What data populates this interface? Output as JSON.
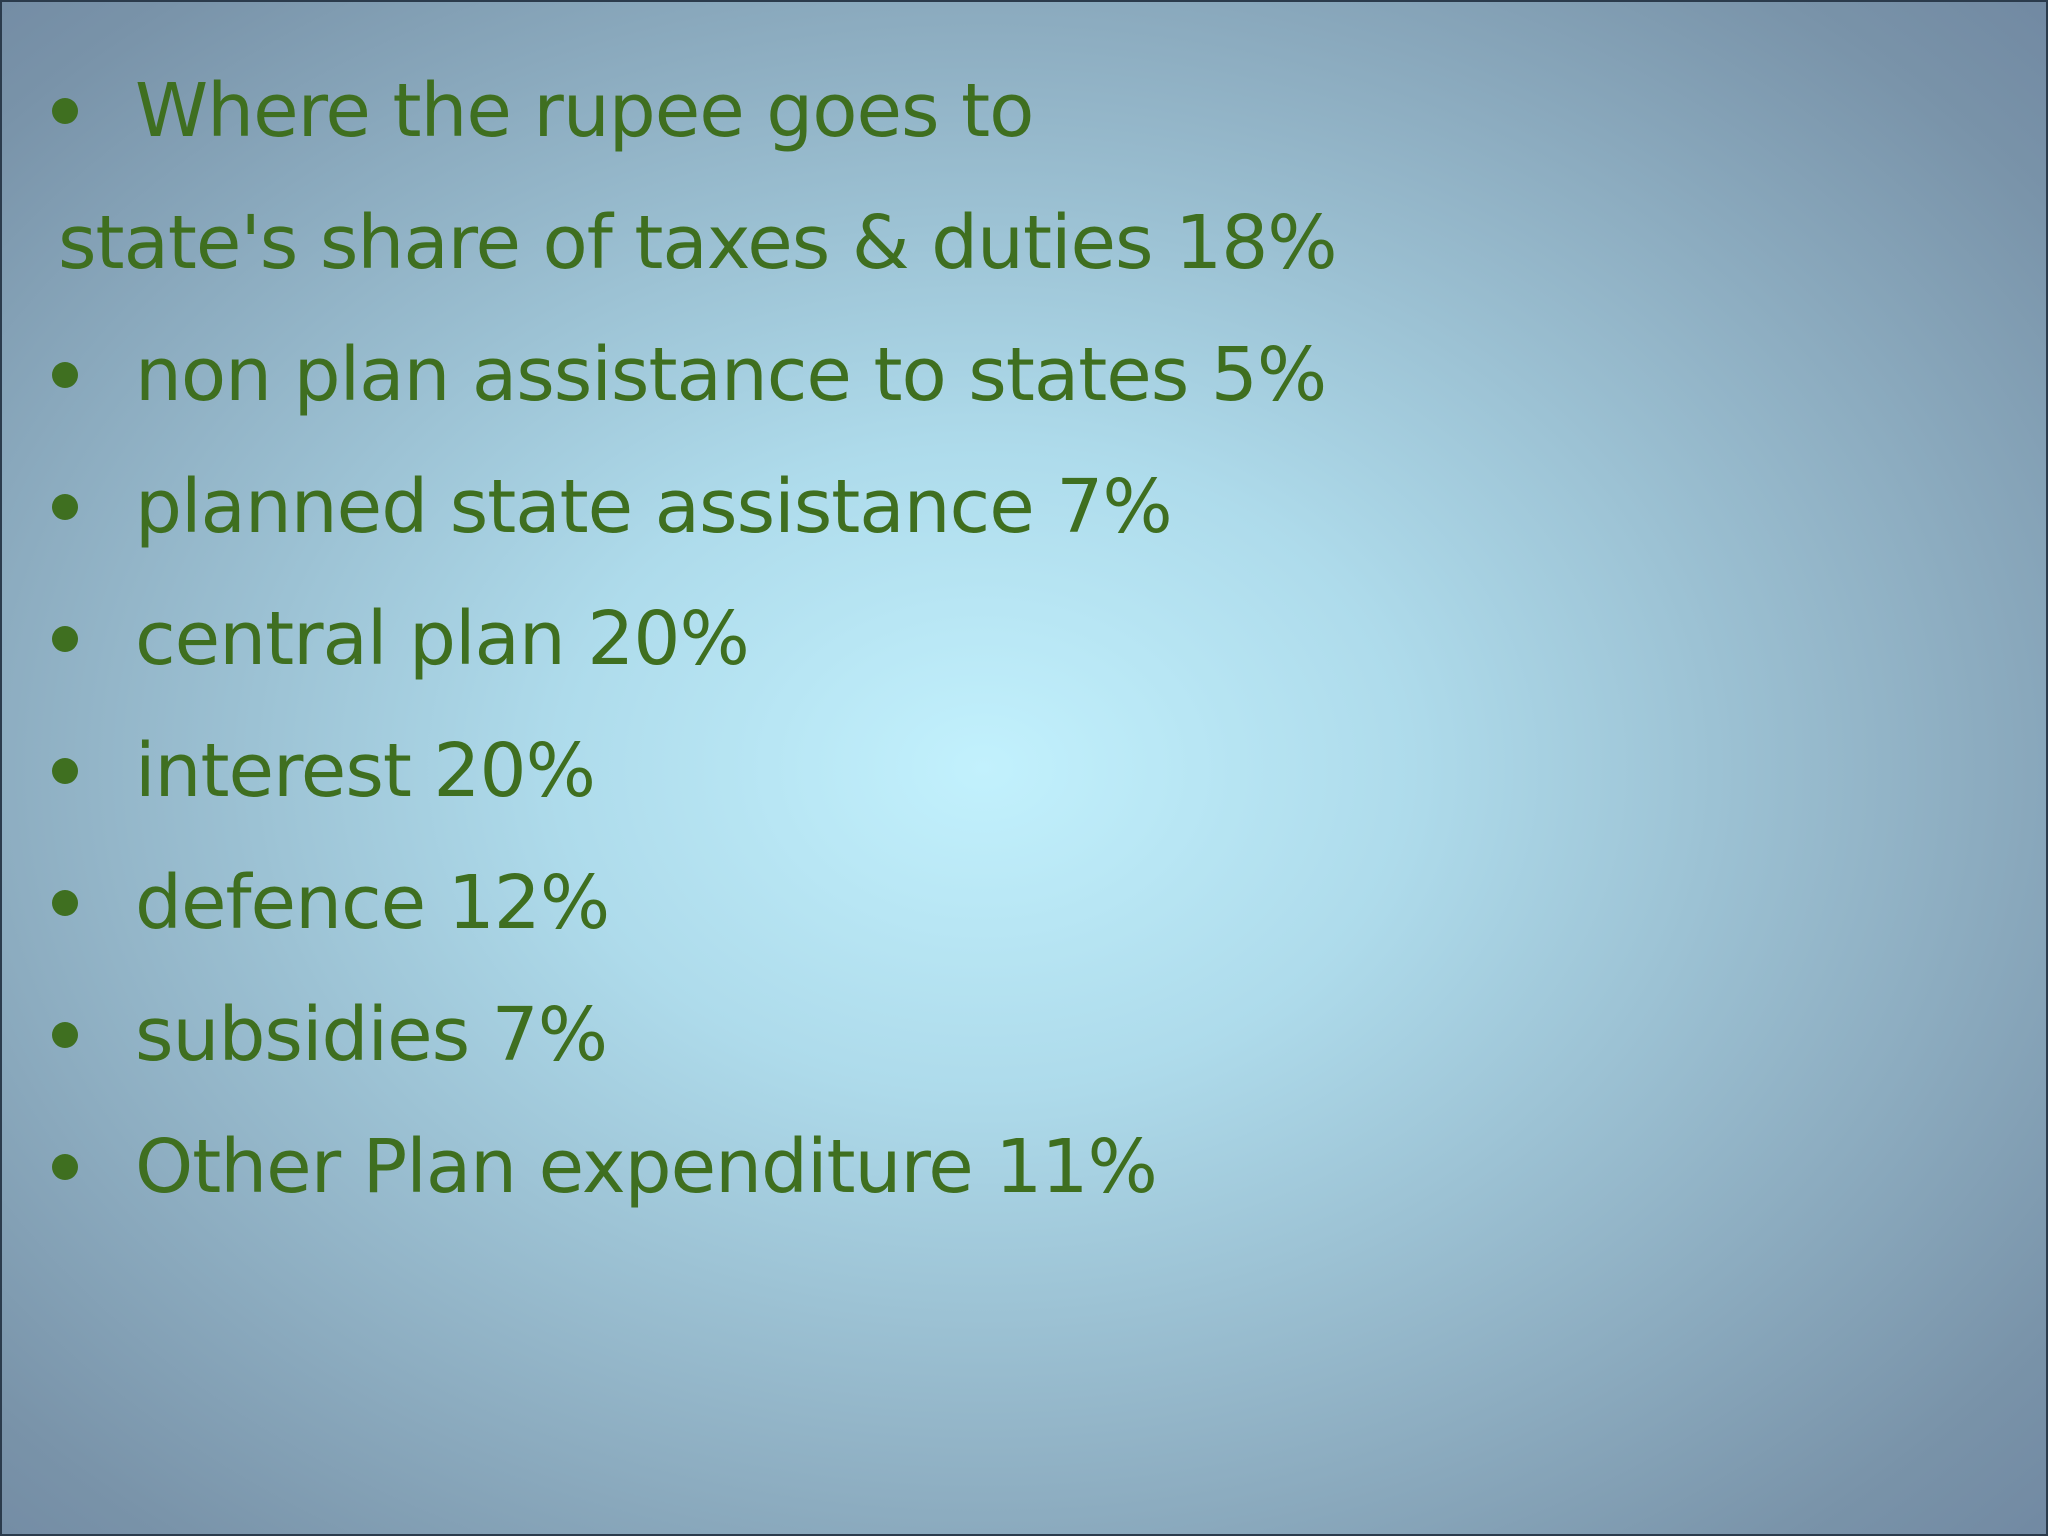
{
  "slide": {
    "heading": "Where the rupee goes to",
    "intro_line": "state's share of taxes & duties 18%",
    "items": [
      "non plan assistance to states 5%",
      "planned state assistance 7%",
      "central plan 20%",
      "interest 20%",
      "defence 12%",
      "subsidies 7%",
      "Other Plan expenditure 11%"
    ],
    "colors": {
      "text": "#3f6f20",
      "background_center": "#c2f1fd",
      "background_edge": "#6f86a0"
    }
  }
}
